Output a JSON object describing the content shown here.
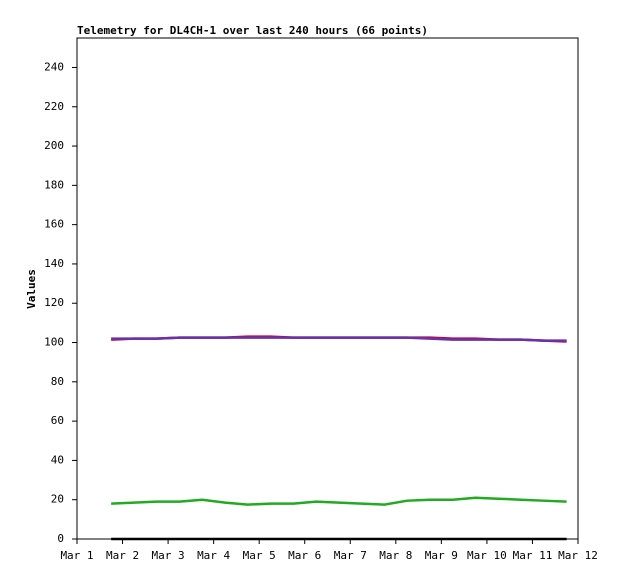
{
  "chart_data": {
    "type": "line",
    "title": "Telemetry for DL4CH-1 over last 240 hours (66 points)",
    "y_label": "Values",
    "x": [
      1.75,
      2.25,
      2.75,
      3.25,
      3.75,
      4.25,
      4.75,
      5.25,
      5.75,
      6.25,
      6.75,
      7.25,
      7.75,
      8.25,
      8.75,
      9.25,
      9.75,
      10.25,
      10.75,
      11.25,
      11.75
    ],
    "series": [
      {
        "color": "#cc0033",
        "values": [
          101.5,
          102,
          102,
          102.5,
          102.5,
          102.5,
          103,
          103,
          102.5,
          102.5,
          102.5,
          102.5,
          102.5,
          102.5,
          102.5,
          102,
          102,
          101.5,
          101.5,
          101,
          100.5
        ]
      },
      {
        "color": "#6633aa",
        "values": [
          102,
          102,
          102,
          102.5,
          102.5,
          102.5,
          102.5,
          102.5,
          102.5,
          102.5,
          102.5,
          102.5,
          102.5,
          102.5,
          102,
          101.5,
          101.5,
          101.5,
          101.5,
          101,
          101
        ]
      },
      {
        "color": "#22aa22",
        "values": [
          18,
          18.5,
          19,
          19,
          20,
          18.5,
          17.5,
          18,
          18,
          19,
          18.5,
          18,
          17.5,
          19.5,
          20,
          20,
          21,
          20.5,
          20,
          19.5,
          19
        ]
      },
      {
        "color": "#000000",
        "values": [
          0,
          0,
          0,
          0,
          0,
          0,
          0,
          0,
          0,
          0,
          0,
          0,
          0,
          0,
          0,
          0,
          0,
          0,
          0,
          0,
          0
        ]
      }
    ],
    "xlim": [
      1,
      12
    ],
    "xticks": [
      {
        "value": 1,
        "label": "Mar 1"
      },
      {
        "value": 2,
        "label": "Mar 2"
      },
      {
        "value": 3,
        "label": "Mar 3"
      },
      {
        "value": 4,
        "label": "Mar 4"
      },
      {
        "value": 5,
        "label": "Mar 5"
      },
      {
        "value": 6,
        "label": "Mar 6"
      },
      {
        "value": 7,
        "label": "Mar 7"
      },
      {
        "value": 8,
        "label": "Mar 8"
      },
      {
        "value": 9,
        "label": "Mar 9"
      },
      {
        "value": 10,
        "label": "Mar 10"
      },
      {
        "value": 11,
        "label": "Mar 11"
      },
      {
        "value": 12,
        "label": "Mar 12"
      }
    ],
    "ylim": [
      0,
      255
    ],
    "yticks": [
      0,
      20,
      40,
      60,
      80,
      100,
      120,
      140,
      160,
      180,
      200,
      220,
      240
    ]
  }
}
